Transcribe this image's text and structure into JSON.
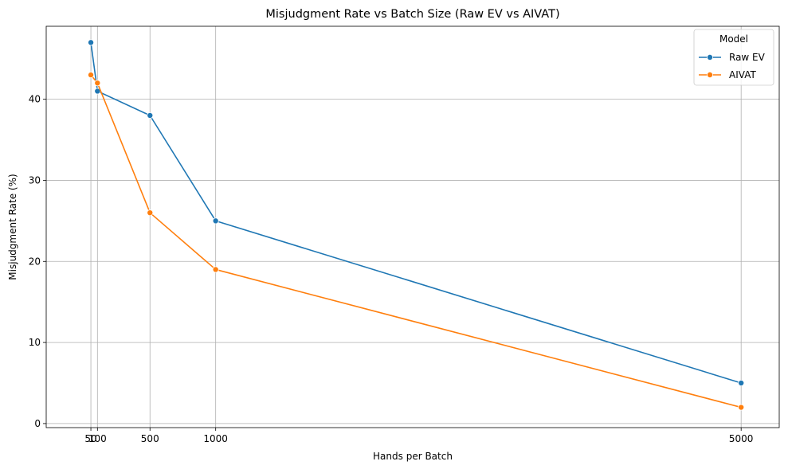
{
  "chart_data": {
    "type": "line",
    "title": "Misjudgment Rate vs Batch Size (Raw EV vs AIVAT)",
    "xlabel": "Hands per Batch",
    "ylabel": "Misjudgment Rate (%)",
    "x": [
      50,
      100,
      500,
      1000,
      5000
    ],
    "xticks": [
      50,
      100,
      500,
      1000,
      5000
    ],
    "xlim": [
      -290,
      5290
    ],
    "yticks": [
      0,
      10,
      20,
      30,
      40
    ],
    "ylim": [
      -0.5,
      49
    ],
    "grid": true,
    "legend": {
      "title": "Model",
      "placement": "top-right"
    },
    "series": [
      {
        "name": "Raw EV",
        "values": [
          47,
          41,
          38,
          25,
          5
        ],
        "color": "#1f77b4"
      },
      {
        "name": "AIVAT",
        "values": [
          43,
          42,
          26,
          19,
          2
        ],
        "color": "#ff7f0e"
      }
    ]
  }
}
